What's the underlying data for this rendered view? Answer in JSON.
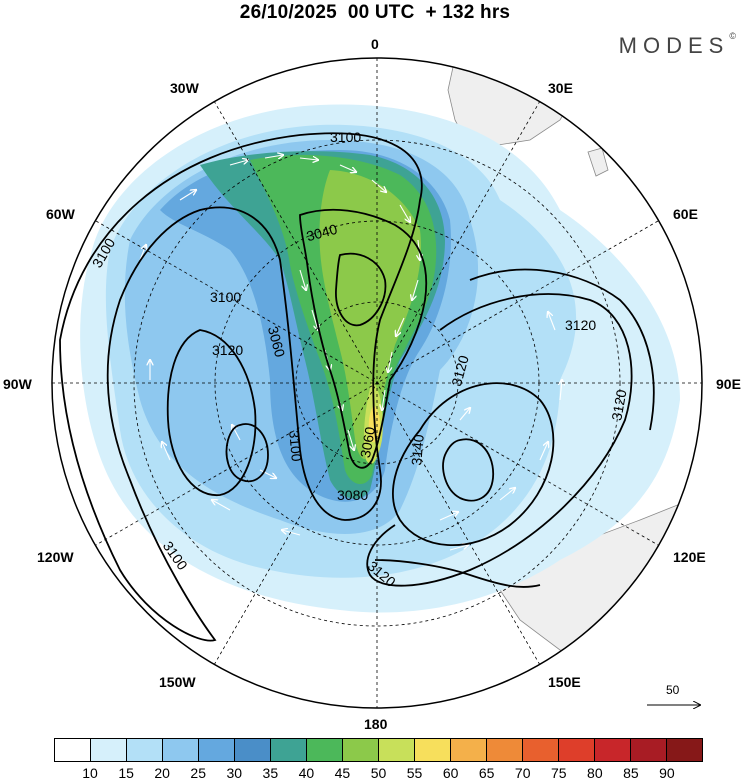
{
  "header": {
    "title": "26/10/2025  00 UTC  + 132 hrs",
    "brand": "MODES",
    "brand_mark": "©"
  },
  "map": {
    "projection": "polar stereographic (south pole)",
    "longitude_labels": {
      "top": "0",
      "top_left": "30W",
      "top_right": "30E",
      "upper_left": "60W",
      "upper_right": "60E",
      "left": "90W",
      "right": "90E",
      "lower_left": "120W",
      "lower_right": "120E",
      "bottom_left": "150W",
      "bottom_right": "150E",
      "bottom": "180"
    },
    "contour_labels": [
      "3100",
      "3100",
      "3100",
      "3040",
      "3060",
      "3120",
      "3100",
      "3120",
      "3100",
      "3120",
      "3140",
      "3060",
      "3080",
      "3120",
      "3120"
    ],
    "reference_vector": {
      "label": "50"
    }
  },
  "colorbar": {
    "labels": [
      "10",
      "15",
      "20",
      "25",
      "30",
      "35",
      "40",
      "45",
      "50",
      "55",
      "60",
      "65",
      "70",
      "75",
      "80",
      "85",
      "90"
    ],
    "colors": [
      "#ffffff",
      "#d6f0fb",
      "#b3e0f7",
      "#8ec8ef",
      "#64a8df",
      "#4a8ec8",
      "#3ea394",
      "#4cb85a",
      "#8cc94a",
      "#c8e05a",
      "#f7df5c",
      "#f4b04a",
      "#ee8a38",
      "#e8602e",
      "#de3e2a",
      "#c8262a",
      "#a81c24",
      "#861818"
    ]
  }
}
